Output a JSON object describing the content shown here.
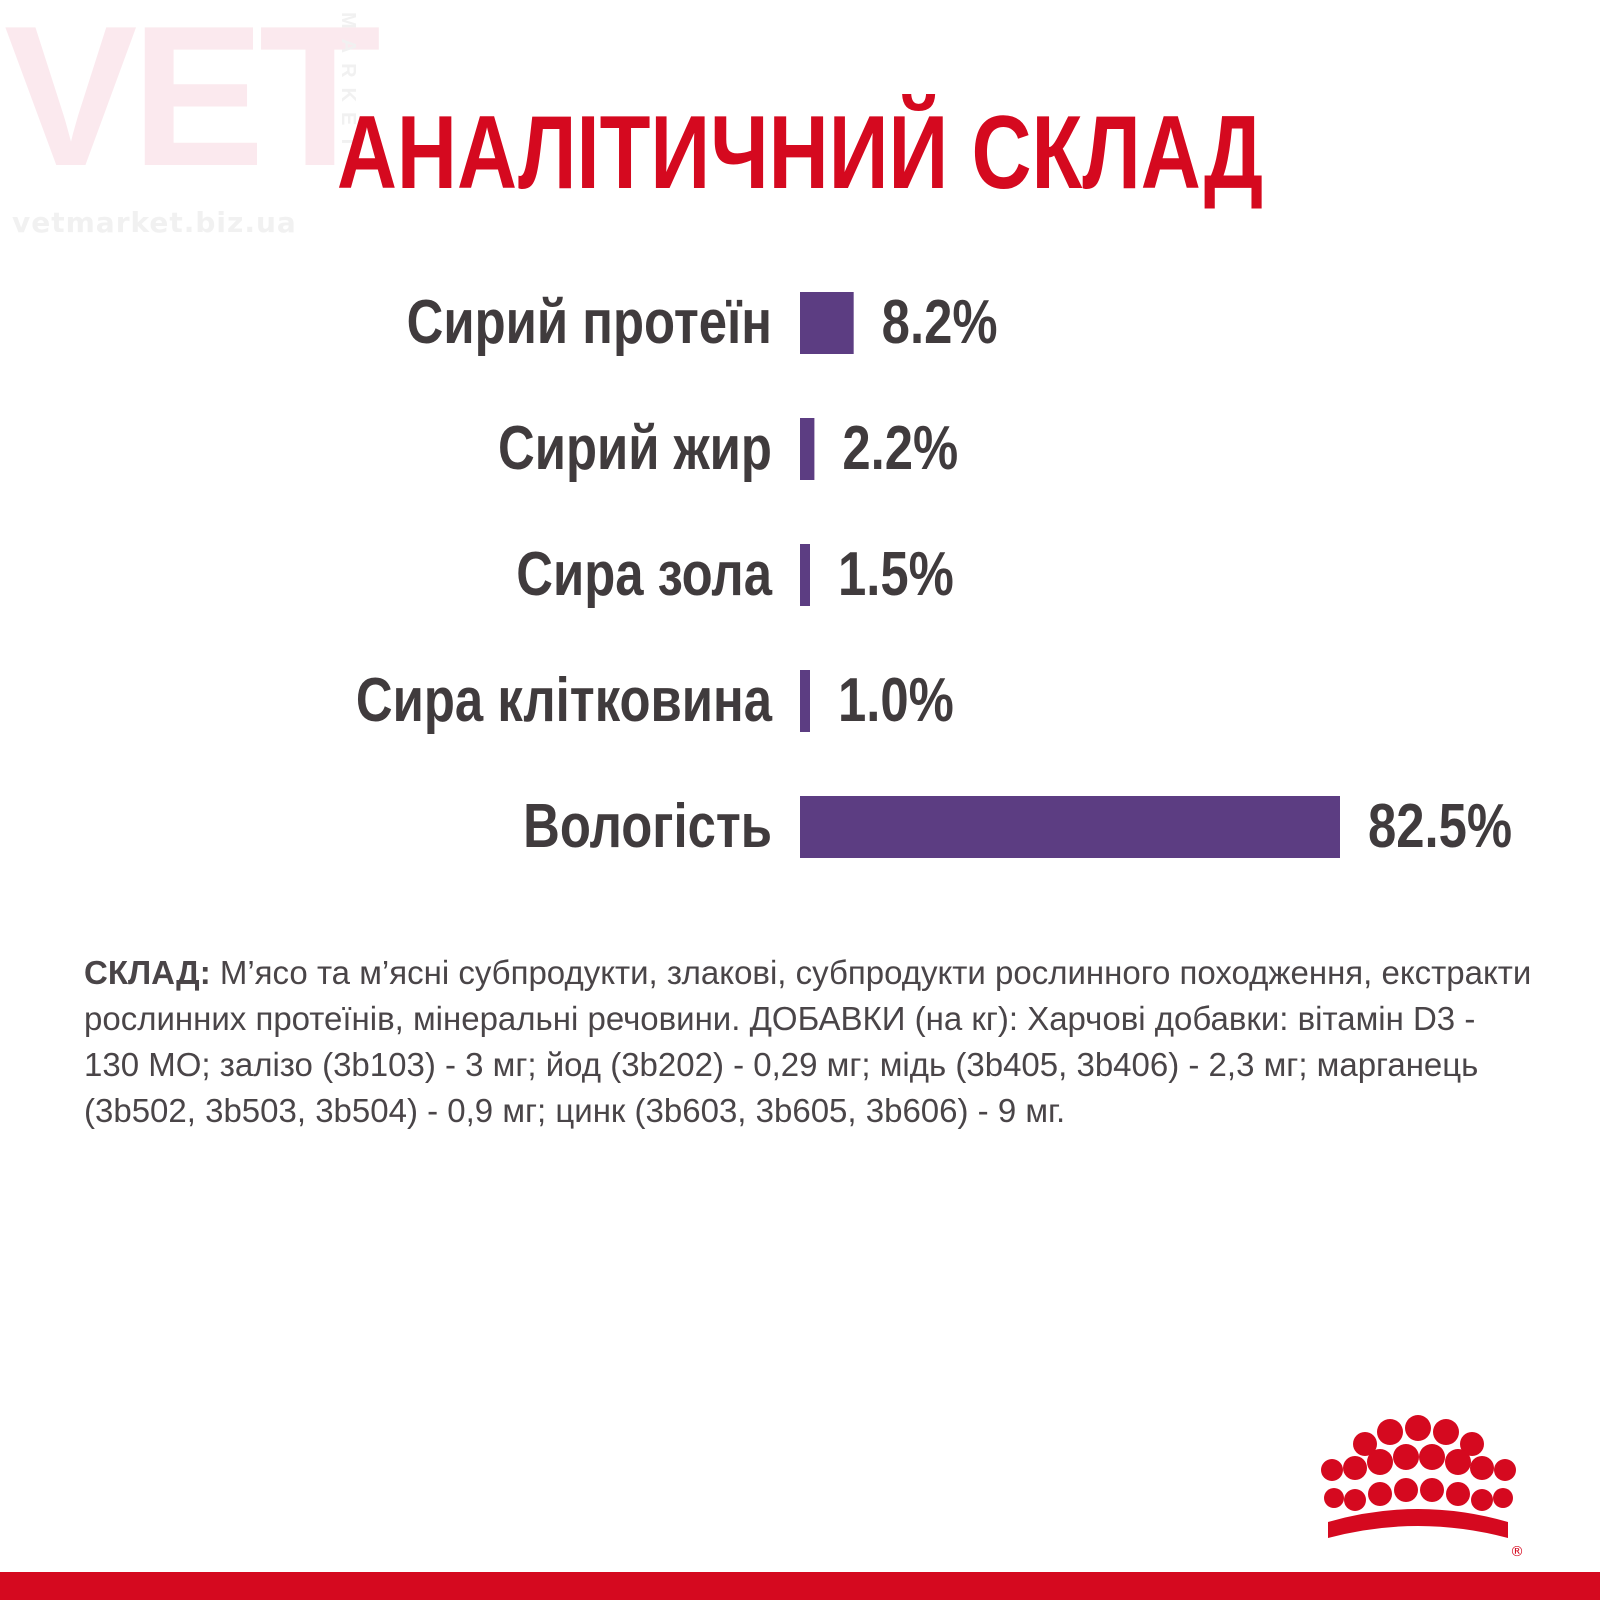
{
  "watermark": {
    "big": "VET",
    "side": "MARKET",
    "url": "vetmarket.biz.ua"
  },
  "title": "АНАЛІТИЧНИЙ СКЛАД",
  "colors": {
    "title": "#d5091f",
    "bar": "#5c3d82",
    "text": "#403b3d",
    "bottom_bar": "#d5091f",
    "logo": "#d5091f"
  },
  "chart_data": {
    "type": "bar",
    "orientation": "horizontal",
    "categories": [
      "Сирий протеїн",
      "Сирий жир",
      "Сира зола",
      "Сира клітковина",
      "Вологість"
    ],
    "values": [
      8.2,
      2.2,
      1.5,
      1.0,
      82.5
    ],
    "value_labels": [
      "8.2%",
      "2.2%",
      "1.5%",
      "1.0%",
      "82.5%"
    ],
    "unit": "%",
    "title": "АНАЛІТИЧНИЙ СКЛАД",
    "xlabel": "",
    "ylabel": "",
    "grid": false,
    "legend": "none"
  },
  "composition": {
    "label": "СКЛАД:",
    "text": " М’ясо та м’ясні субпродукти, злакові, субпродукти рослинного походження, екстракти рослинних протеїнів, мінеральні речовини. ДОБАВКИ (на кг): Харчові добавки: вітамін D3 - 130 МО; залізо (3b103) - 3 мг; йод (3b202) - 0,29 мг; мідь (3b405, 3b406) - 2,3 мг; марганець (3b502, 3b503, 3b504) - 0,9 мг; цинк (3b603, 3b605, 3b606) - 9 мг."
  },
  "logo": {
    "icon": "royal-canin-crown-icon",
    "mark": "®"
  }
}
